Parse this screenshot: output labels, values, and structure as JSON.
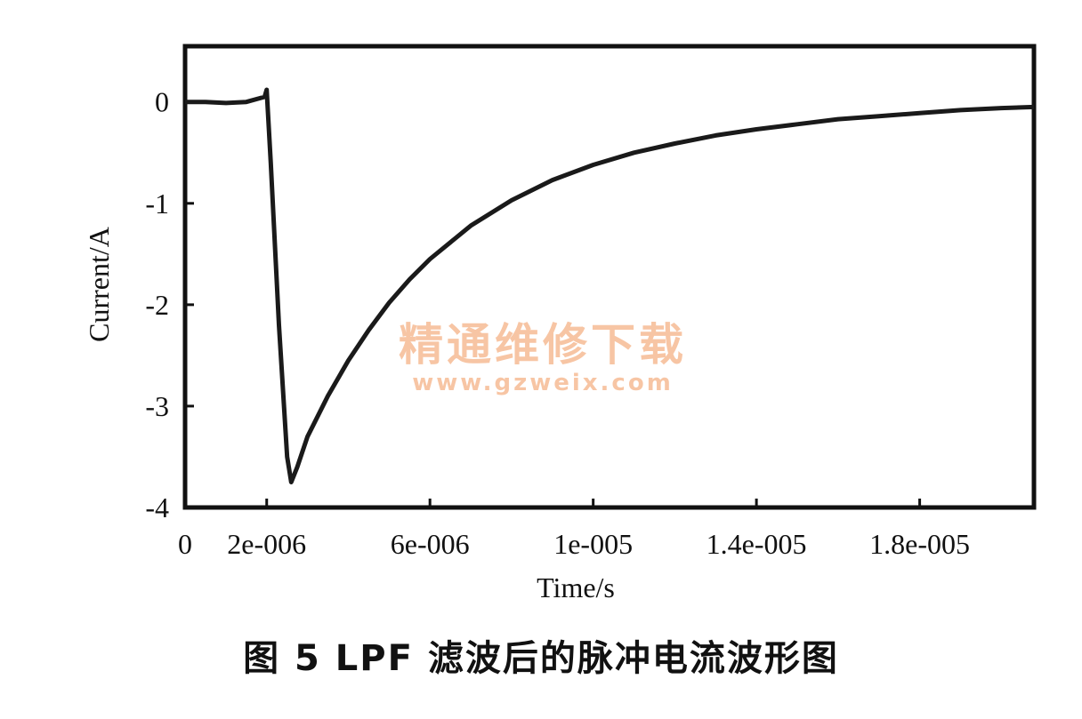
{
  "chart_data": {
    "type": "line",
    "title": "图 5   LPF 滤波后的脉冲电流波形图",
    "xlabel": "Time/s",
    "ylabel": "Current/A",
    "xlim": [
      0,
      2.08e-05
    ],
    "ylim": [
      -4,
      0.55
    ],
    "x_ticks": [
      {
        "value": 0,
        "label": "0"
      },
      {
        "value": 2e-06,
        "label": "2e-006"
      },
      {
        "value": 6e-06,
        "label": "6e-006"
      },
      {
        "value": 1e-05,
        "label": "1e-005"
      },
      {
        "value": 1.4e-05,
        "label": "1.4e-005"
      },
      {
        "value": 1.8e-05,
        "label": "1.8e-005"
      }
    ],
    "y_ticks": [
      {
        "value": 0,
        "label": "0"
      },
      {
        "value": -1,
        "label": "-1"
      },
      {
        "value": -2,
        "label": "-2"
      },
      {
        "value": -3,
        "label": "-3"
      },
      {
        "value": -4,
        "label": "-4"
      }
    ],
    "grid": false,
    "series": [
      {
        "color": "#1a1a1a",
        "x": [
          0,
          5e-07,
          1e-06,
          1.5e-06,
          1.95e-06,
          2e-06,
          2.1e-06,
          2.3e-06,
          2.5e-06,
          2.6e-06,
          2.75e-06,
          3e-06,
          3.5e-06,
          4e-06,
          4.5e-06,
          5e-06,
          5.5e-06,
          6e-06,
          7e-06,
          8e-06,
          9e-06,
          1e-05,
          1.1e-05,
          1.2e-05,
          1.3e-05,
          1.4e-05,
          1.5e-05,
          1.6e-05,
          1.7e-05,
          1.8e-05,
          1.9e-05,
          2e-05,
          2.08e-05
        ],
        "y": [
          0.0,
          0.0,
          -0.01,
          0.0,
          0.05,
          0.12,
          -0.6,
          -2.2,
          -3.5,
          -3.75,
          -3.6,
          -3.3,
          -2.9,
          -2.55,
          -2.25,
          -1.98,
          -1.75,
          -1.55,
          -1.22,
          -0.97,
          -0.77,
          -0.62,
          -0.5,
          -0.41,
          -0.33,
          -0.27,
          -0.22,
          -0.17,
          -0.14,
          -0.11,
          -0.08,
          -0.06,
          -0.05
        ]
      }
    ],
    "watermark": [
      "精通维修下载",
      "www.gzweix.com"
    ]
  }
}
